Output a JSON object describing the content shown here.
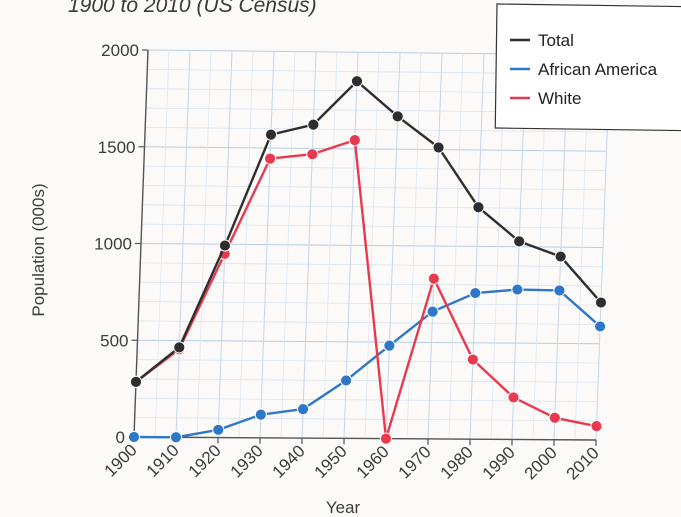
{
  "chart_data": {
    "type": "line",
    "title": "1900 to 2010 (US Census)",
    "xlabel": "Year",
    "ylabel": "Population (000s)",
    "x": [
      1900,
      1910,
      1920,
      1930,
      1940,
      1950,
      1960,
      1970,
      1980,
      1990,
      2000,
      2010
    ],
    "xlim": [
      1900,
      2010
    ],
    "ylim": [
      0,
      2000
    ],
    "yticks": [
      0,
      500,
      1000,
      1500,
      2000
    ],
    "grid": true,
    "legend_position": "top-right",
    "series": [
      {
        "name": "Total",
        "color": "#2e2e2e",
        "values": [
          285,
          465,
          993,
          1569,
          1623,
          1850,
          1670,
          1511,
          1203,
          1028,
          951,
          714
        ]
      },
      {
        "name": "African America",
        "color": "#2f78c9",
        "values": [
          0,
          0,
          40,
          120,
          150,
          300,
          482,
          660,
          758,
          778,
          775,
          590
        ]
      },
      {
        "name": "White",
        "color": "#e83a4f",
        "values": [
          285,
          455,
          950,
          1445,
          1470,
          1545,
          0,
          831,
          413,
          218,
          114,
          72
        ]
      }
    ]
  }
}
